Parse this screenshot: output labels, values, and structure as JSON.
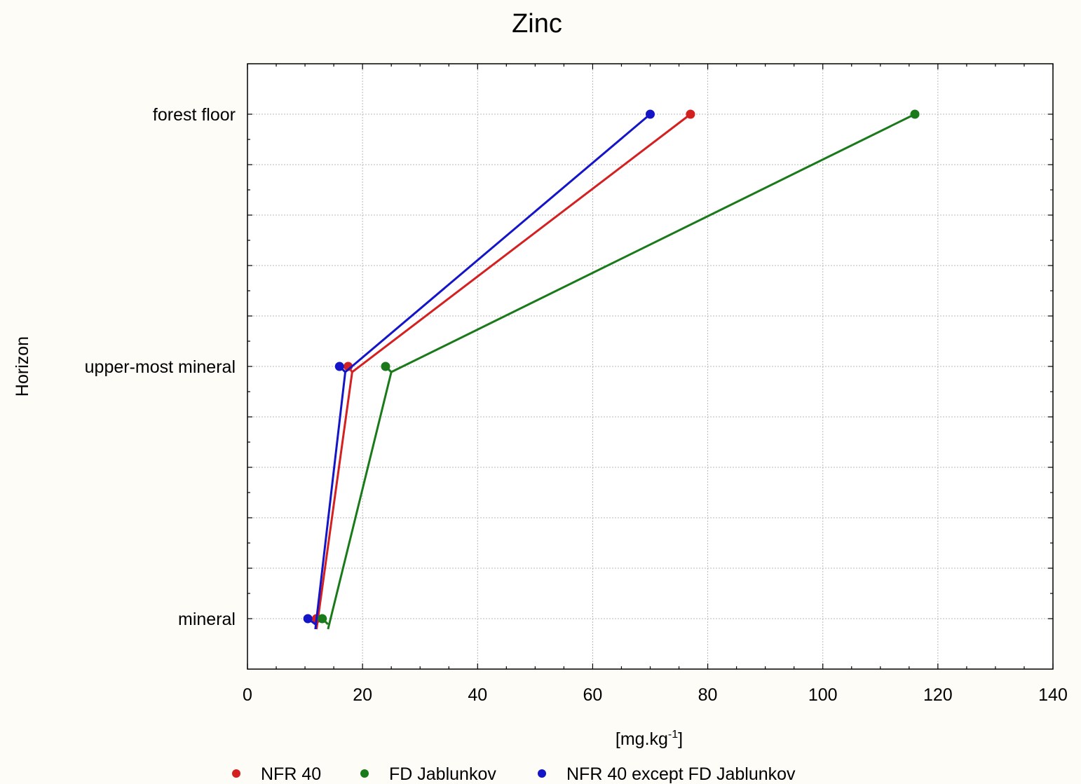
{
  "chart_data": {
    "type": "line",
    "title": "Zinc",
    "xlabel_main": "[mg.kg",
    "xlabel_sup": "-1",
    "xlabel_tail": "]",
    "ylabel": "Horizon",
    "xlim": [
      0,
      140
    ],
    "x_ticks": [
      0,
      20,
      40,
      60,
      80,
      100,
      120,
      140
    ],
    "categories": [
      "forest floor",
      "upper-most mineral",
      "mineral"
    ],
    "grid": true,
    "legend_position": "bottom",
    "series": [
      {
        "name": "NFR 40",
        "color": "#d42020",
        "points": [
          {
            "category": "forest floor",
            "x": 77
          },
          {
            "category": "upper-most mineral",
            "x": 17.5,
            "end_x": 18.2
          },
          {
            "category": "mineral",
            "x": 12,
            "end_x": 12
          }
        ]
      },
      {
        "name": "FD Jablunkov",
        "color": "#1a7a1a",
        "points": [
          {
            "category": "forest floor",
            "x": 116
          },
          {
            "category": "upper-most mineral",
            "x": 24,
            "end_x": 25
          },
          {
            "category": "mineral",
            "x": 13,
            "end_x": 14
          }
        ]
      },
      {
        "name": "NFR 40 except FD Jablunkov",
        "color": "#1515c8",
        "points": [
          {
            "category": "forest floor",
            "x": 70
          },
          {
            "category": "upper-most mineral",
            "x": 16,
            "end_x": 17
          },
          {
            "category": "mineral",
            "x": 10.5,
            "end_x": 11.8
          }
        ]
      }
    ]
  }
}
